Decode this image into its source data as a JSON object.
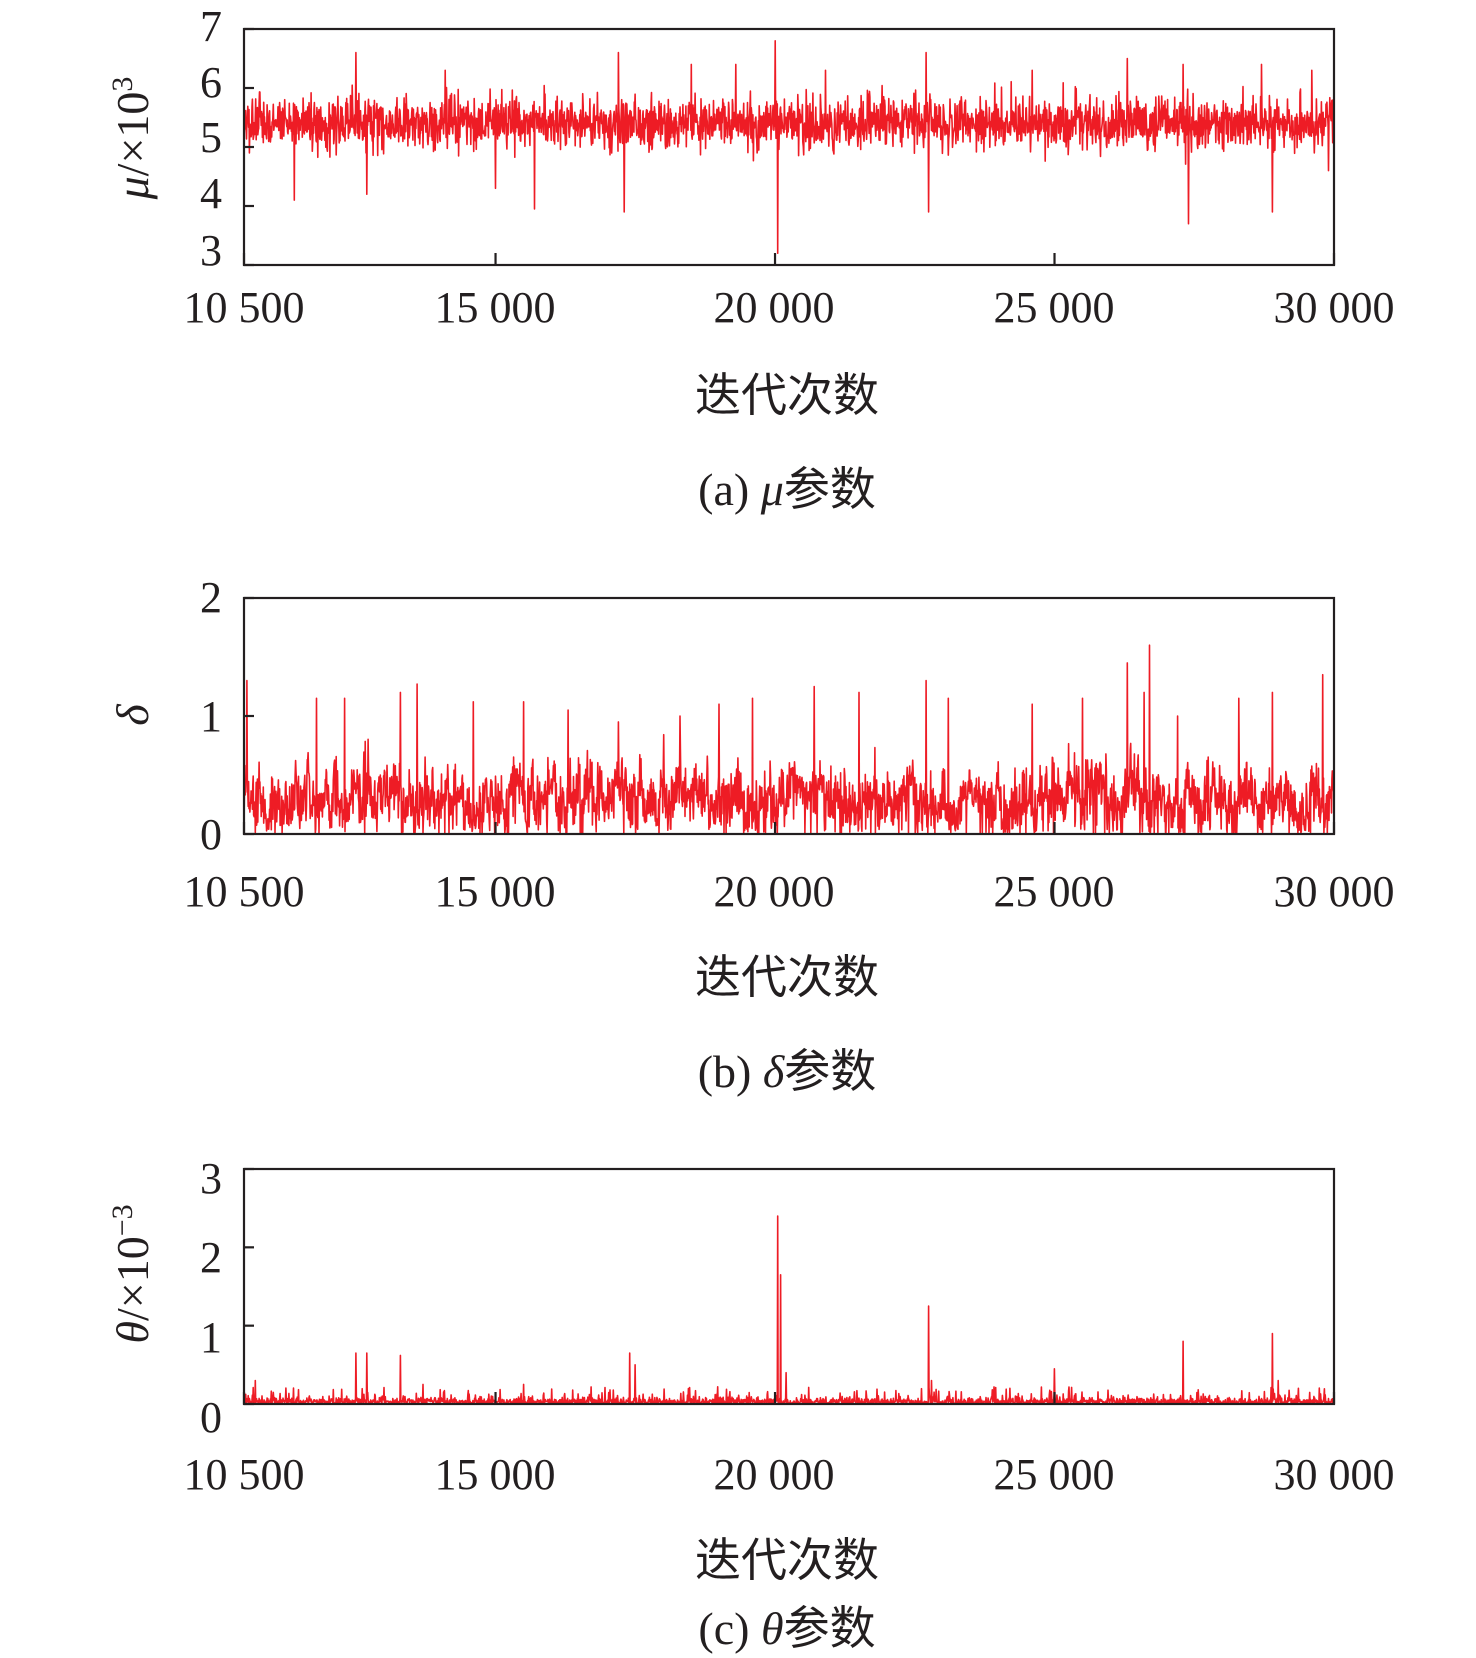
{
  "colors": {
    "series": "#ee1c25",
    "axis": "#231f20"
  },
  "chart_data": [
    {
      "type": "line",
      "xlabel": "迭代次数",
      "ylabel": {
        "symbol": "μ",
        "unit": "/×10",
        "exponent": "3"
      },
      "caption": {
        "prefix": "(a) ",
        "symbol": "μ",
        "suffix": "参数"
      },
      "xlim": [
        10500,
        30000
      ],
      "ylim": [
        3,
        7
      ],
      "xticks": [
        10500,
        15000,
        20000,
        25000,
        30000
      ],
      "xtick_labels": [
        "10 500",
        "15 000",
        "20 000",
        "25 000",
        "30 000"
      ],
      "yticks": [
        3,
        4,
        5,
        6,
        7
      ],
      "ytick_labels": [
        "3",
        "4",
        "5",
        "6",
        "7"
      ],
      "grid": false,
      "series": [
        {
          "values_summary": {
            "mean": 5.4,
            "typical_min": 4.7,
            "typical_max": 6.0
          },
          "spikes": [
            {
              "x": 10600,
              "y": 4.9
            },
            {
              "x": 11400,
              "y": 4.1
            },
            {
              "x": 12500,
              "y": 6.6
            },
            {
              "x": 12700,
              "y": 4.2
            },
            {
              "x": 14100,
              "y": 6.3
            },
            {
              "x": 15000,
              "y": 4.3
            },
            {
              "x": 15700,
              "y": 3.95
            },
            {
              "x": 17200,
              "y": 6.6
            },
            {
              "x": 17300,
              "y": 3.9
            },
            {
              "x": 18500,
              "y": 6.4
            },
            {
              "x": 19300,
              "y": 6.4
            },
            {
              "x": 20000,
              "y": 6.8
            },
            {
              "x": 20050,
              "y": 3.2
            },
            {
              "x": 20900,
              "y": 6.3
            },
            {
              "x": 22700,
              "y": 6.6
            },
            {
              "x": 22750,
              "y": 3.9
            },
            {
              "x": 24600,
              "y": 6.3
            },
            {
              "x": 26300,
              "y": 6.5
            },
            {
              "x": 27300,
              "y": 6.4
            },
            {
              "x": 27400,
              "y": 3.7
            },
            {
              "x": 28700,
              "y": 6.4
            },
            {
              "x": 28900,
              "y": 3.9
            },
            {
              "x": 29600,
              "y": 6.3
            },
            {
              "x": 29900,
              "y": 4.6
            }
          ]
        }
      ]
    },
    {
      "type": "line",
      "xlabel": "迭代次数",
      "ylabel": {
        "symbol": "δ",
        "unit": "",
        "exponent": ""
      },
      "caption": {
        "prefix": "(b) ",
        "symbol": "δ",
        "suffix": "参数"
      },
      "xlim": [
        10500,
        30000
      ],
      "ylim": [
        0,
        2
      ],
      "xticks": [
        10500,
        15000,
        20000,
        25000,
        30000
      ],
      "xtick_labels": [
        "10 500",
        "15 000",
        "20 000",
        "25 000",
        "30 000"
      ],
      "yticks": [
        0,
        1,
        2
      ],
      "ytick_labels": [
        "0",
        "1",
        "2"
      ],
      "grid": false,
      "series": [
        {
          "values_summary": {
            "mean": 0.3,
            "typical_min": 0.0,
            "typical_max": 0.7
          },
          "spikes": [
            {
              "x": 10550,
              "y": 1.3
            },
            {
              "x": 11800,
              "y": 1.15
            },
            {
              "x": 12300,
              "y": 1.15
            },
            {
              "x": 13300,
              "y": 1.2
            },
            {
              "x": 13600,
              "y": 1.27
            },
            {
              "x": 14600,
              "y": 1.12
            },
            {
              "x": 15500,
              "y": 1.12
            },
            {
              "x": 16300,
              "y": 1.05
            },
            {
              "x": 17200,
              "y": 0.95
            },
            {
              "x": 18300,
              "y": 1.0
            },
            {
              "x": 19000,
              "y": 1.1
            },
            {
              "x": 19600,
              "y": 1.15
            },
            {
              "x": 20700,
              "y": 1.25
            },
            {
              "x": 21500,
              "y": 1.2
            },
            {
              "x": 22700,
              "y": 1.3
            },
            {
              "x": 23100,
              "y": 1.15
            },
            {
              "x": 24600,
              "y": 1.1
            },
            {
              "x": 25500,
              "y": 1.15
            },
            {
              "x": 26300,
              "y": 1.45
            },
            {
              "x": 26600,
              "y": 1.2
            },
            {
              "x": 26700,
              "y": 1.6
            },
            {
              "x": 27200,
              "y": 1.0
            },
            {
              "x": 28300,
              "y": 1.15
            },
            {
              "x": 28900,
              "y": 1.2
            },
            {
              "x": 29800,
              "y": 1.35
            },
            {
              "x": 30000,
              "y": 0.75
            }
          ]
        }
      ]
    },
    {
      "type": "line",
      "xlabel": "迭代次数",
      "ylabel": {
        "symbol": "θ",
        "unit": "/×10",
        "exponent": "−3"
      },
      "caption": {
        "prefix": "(c) ",
        "symbol": "θ",
        "suffix": "参数"
      },
      "xlim": [
        10500,
        30000
      ],
      "ylim": [
        0,
        3
      ],
      "xticks": [
        10500,
        15000,
        20000,
        25000,
        30000
      ],
      "xtick_labels": [
        "10 500",
        "15 000",
        "20 000",
        "25 000",
        "30 000"
      ],
      "yticks": [
        0,
        1,
        2,
        3
      ],
      "ytick_labels": [
        "0",
        "1",
        "2",
        "3"
      ],
      "grid": false,
      "series": [
        {
          "values_summary": {
            "mean": 0.05,
            "typical_min": 0.0,
            "typical_max": 0.15
          },
          "spikes": [
            {
              "x": 10700,
              "y": 0.3
            },
            {
              "x": 12500,
              "y": 0.65
            },
            {
              "x": 12700,
              "y": 0.65
            },
            {
              "x": 13300,
              "y": 0.62
            },
            {
              "x": 13700,
              "y": 0.25
            },
            {
              "x": 15500,
              "y": 0.25
            },
            {
              "x": 17400,
              "y": 0.65
            },
            {
              "x": 17500,
              "y": 0.5
            },
            {
              "x": 20050,
              "y": 2.4
            },
            {
              "x": 20100,
              "y": 1.65
            },
            {
              "x": 20200,
              "y": 0.4
            },
            {
              "x": 22750,
              "y": 1.25
            },
            {
              "x": 22800,
              "y": 0.3
            },
            {
              "x": 25000,
              "y": 0.45
            },
            {
              "x": 27300,
              "y": 0.8
            },
            {
              "x": 28900,
              "y": 0.9
            },
            {
              "x": 29000,
              "y": 0.3
            }
          ]
        }
      ]
    }
  ]
}
